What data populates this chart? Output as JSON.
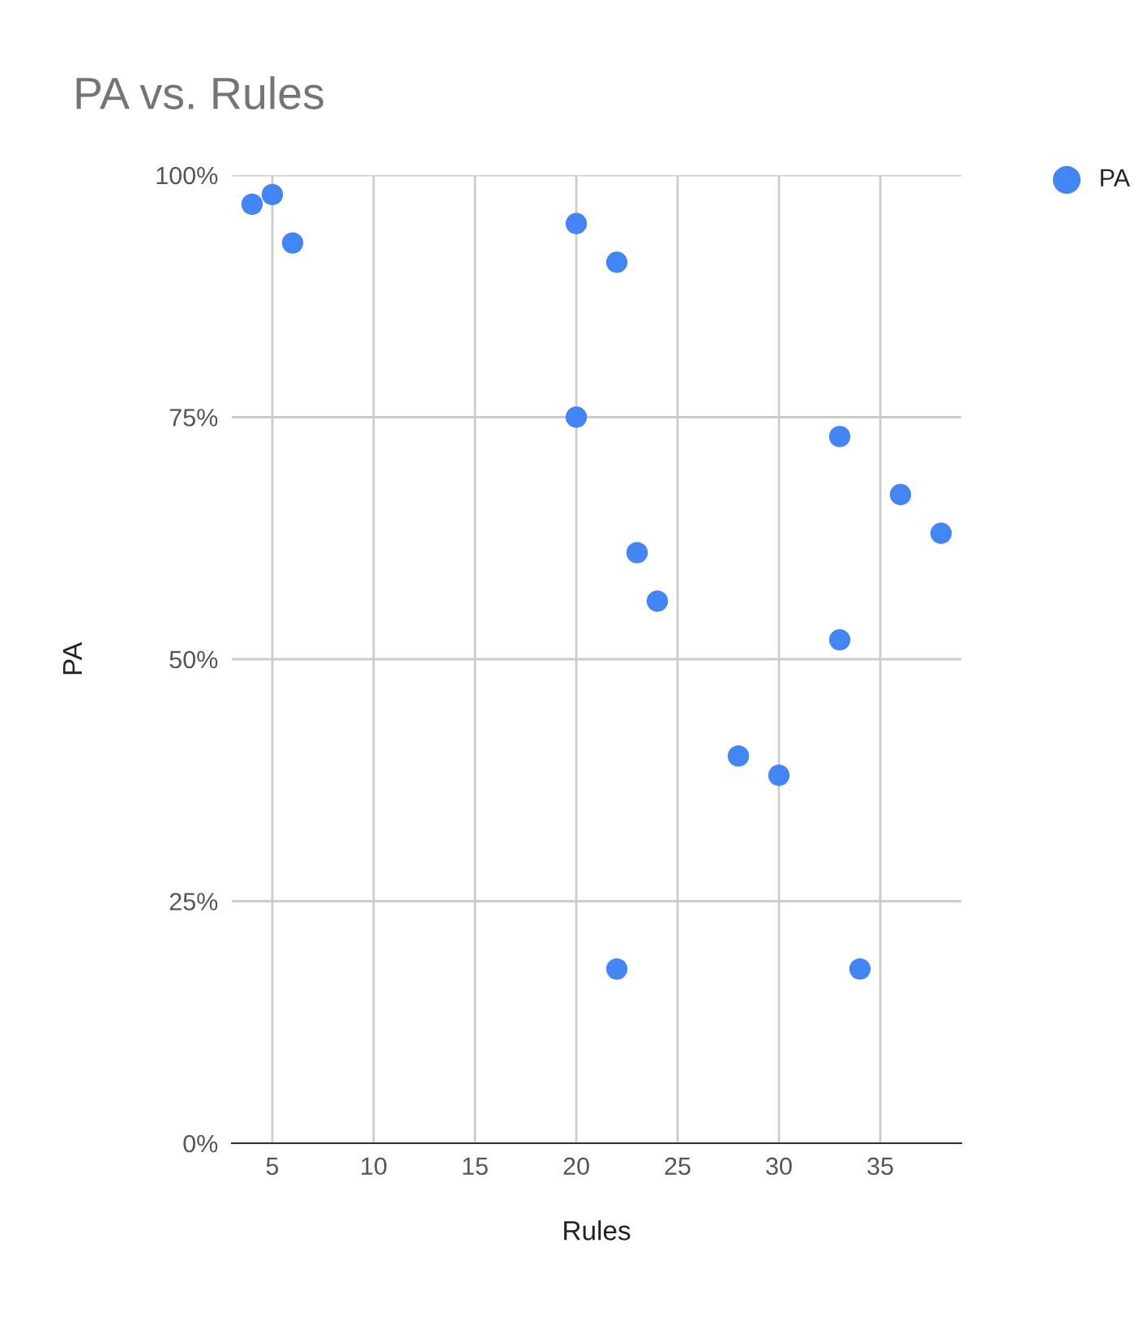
{
  "chart_data": {
    "type": "scatter",
    "title": "PA vs. Rules",
    "xlabel": "Rules",
    "ylabel": "PA",
    "x": [
      4,
      5,
      6,
      20,
      22,
      20,
      33,
      36,
      38,
      23,
      24,
      33,
      28,
      30,
      22,
      34
    ],
    "series": [
      {
        "name": "PA",
        "color": "#4285f4",
        "values": [
          97,
          98,
          93,
          95,
          91,
          75,
          73,
          67,
          63,
          61,
          56,
          52,
          40,
          38,
          18,
          18
        ]
      }
    ],
    "xlim": [
      3,
      39
    ],
    "xticks": [
      5,
      10,
      15,
      20,
      25,
      30,
      35
    ],
    "ylim": [
      0,
      100
    ],
    "yticks": [
      {
        "value": 0,
        "label": "0%"
      },
      {
        "value": 25,
        "label": "25%"
      },
      {
        "value": 50,
        "label": "50%"
      },
      {
        "value": 75,
        "label": "75%"
      },
      {
        "value": 100,
        "label": "100%"
      }
    ],
    "grid": true,
    "legend": "top right",
    "marker": "circle"
  }
}
